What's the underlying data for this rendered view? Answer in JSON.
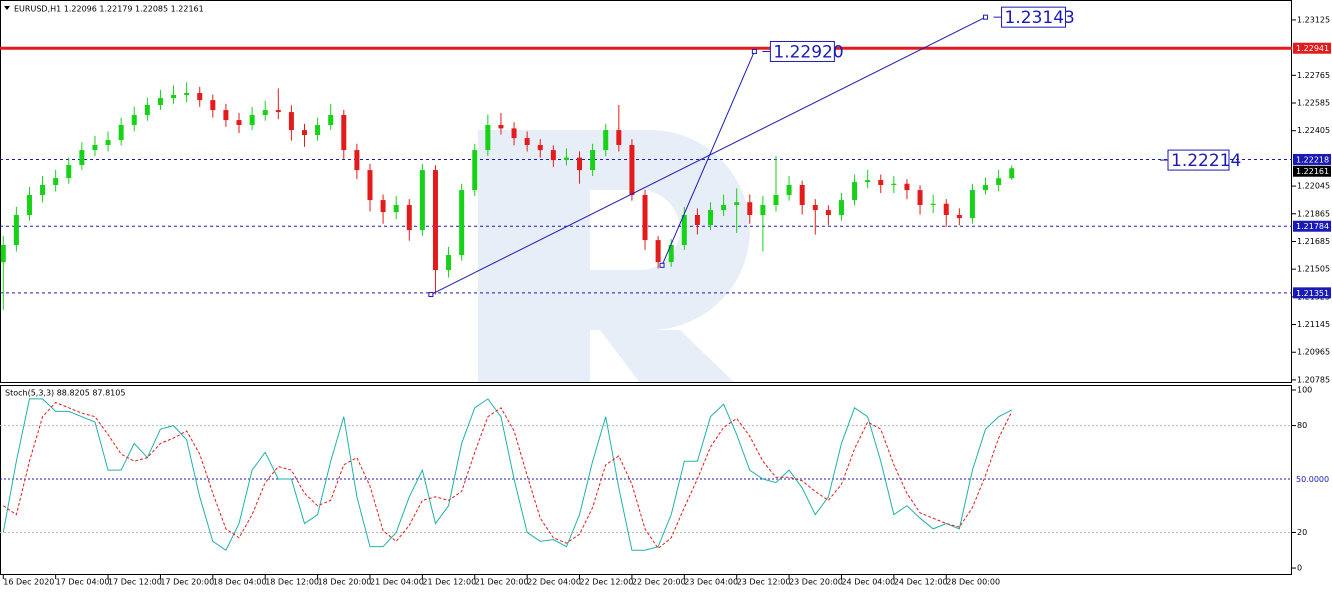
{
  "chart_data": [
    {
      "type": "candlestick",
      "title": "EURUSD,H1 1.22096 1.22179 1.22085 1.22161",
      "x": [
        0,
        2,
        4,
        6,
        8,
        10,
        12,
        14,
        16,
        18,
        20,
        22,
        24,
        26,
        28,
        30,
        32,
        34,
        36,
        38,
        40,
        42,
        44,
        46,
        48,
        50,
        52,
        54,
        56,
        58,
        60,
        62,
        64,
        66,
        68,
        70,
        72,
        74,
        76,
        78,
        80,
        82,
        84,
        86,
        88,
        90,
        92,
        94,
        96,
        98,
        100,
        102,
        104,
        106,
        108,
        110,
        112,
        114,
        116,
        118,
        120,
        122,
        124,
        126,
        128,
        130,
        132,
        134,
        136,
        138,
        140,
        142,
        144,
        146,
        148,
        150,
        152,
        154
      ],
      "open": [
        1.2155,
        1.21662,
        1.21857,
        1.21987,
        1.22052,
        1.22097,
        1.22182,
        1.22279,
        1.22312,
        1.22344,
        1.22442,
        1.22507,
        1.22572,
        1.22617,
        1.22637,
        1.2265,
        1.22604,
        1.22539,
        1.22474,
        1.22442,
        1.22507,
        1.22539,
        1.22526,
        1.22409,
        1.22377,
        1.22442,
        1.22507,
        1.22279,
        1.22149,
        1.21954,
        1.21876,
        1.21922,
        1.21759,
        1.22149,
        1.21499,
        1.21597,
        1.22019,
        1.22279,
        1.22442,
        1.2242,
        1.22357,
        1.22312,
        1.22279,
        1.22214,
        1.2223,
        1.22149,
        1.22279,
        1.22409,
        1.22312,
        1.21987,
        1.21694,
        1.21551,
        1.21662,
        1.21857,
        1.21792,
        1.21889,
        1.21922,
        1.2194,
        1.21857,
        1.21922,
        1.21987,
        1.22052,
        1.21922,
        1.21889,
        1.21857,
        1.21954,
        1.22071,
        1.22084,
        1.22052,
        1.2206,
        1.22019,
        1.21922,
        1.2193,
        1.21857,
        1.21837,
        1.22019,
        1.22052,
        1.22096
      ],
      "high": [
        1.2172,
        1.2191,
        1.2204,
        1.2211,
        1.2215,
        1.2223,
        1.2233,
        1.2237,
        1.224,
        1.2249,
        1.2256,
        1.2262,
        1.2267,
        1.227,
        1.2272,
        1.2269,
        1.2264,
        1.2258,
        1.2252,
        1.2256,
        1.226,
        1.2268,
        1.2257,
        1.2245,
        1.2249,
        1.2258,
        1.2254,
        1.2232,
        1.2219,
        1.2199,
        1.2198,
        1.2196,
        1.2219,
        1.2218,
        1.2165,
        1.2206,
        1.2232,
        1.2251,
        1.2252,
        1.2246,
        1.224,
        1.2235,
        1.2231,
        1.2229,
        1.2227,
        1.2232,
        1.2245,
        1.22572,
        1.2235,
        1.2202,
        1.2172,
        1.217,
        1.2191,
        1.219,
        1.2194,
        1.2199,
        1.2203,
        1.2199,
        1.2198,
        1.2224,
        1.2211,
        1.2208,
        1.2196,
        1.2192,
        1.22,
        1.2212,
        1.2215,
        1.2212,
        1.2211,
        1.2209,
        1.2205,
        1.2199,
        1.2196,
        1.219,
        1.2206,
        1.221,
        1.2215,
        1.22179
      ],
      "low": [
        1.2124,
        1.2162,
        1.2182,
        1.2194,
        1.2201,
        1.2206,
        1.2215,
        1.2224,
        1.2227,
        1.2231,
        1.224,
        1.2247,
        1.2254,
        1.2258,
        1.2259,
        1.2256,
        1.2249,
        1.2243,
        1.2239,
        1.2241,
        1.2247,
        1.2248,
        1.2234,
        1.223,
        1.2234,
        1.2241,
        1.2222,
        1.2209,
        1.2188,
        1.218,
        1.2183,
        1.2169,
        1.2172,
        1.2134,
        1.2145,
        1.2156,
        1.2198,
        1.2224,
        1.2238,
        1.2231,
        1.2227,
        1.2223,
        1.2217,
        1.2218,
        1.2206,
        1.2211,
        1.2224,
        1.2227,
        1.2195,
        1.2163,
        1.2151,
        1.2152,
        1.2163,
        1.2173,
        1.2176,
        1.2185,
        1.2174,
        1.218,
        1.2162,
        1.2188,
        1.2195,
        1.2186,
        1.2173,
        1.2179,
        1.2182,
        1.2192,
        1.2203,
        1.22,
        1.22,
        1.2196,
        1.2186,
        1.2187,
        1.2178,
        1.2179,
        1.218,
        1.2199,
        1.2201,
        1.22085
      ],
      "close": [
        1.21662,
        1.21857,
        1.21987,
        1.22052,
        1.22097,
        1.22182,
        1.22279,
        1.22312,
        1.22344,
        1.22442,
        1.22507,
        1.22572,
        1.22617,
        1.22637,
        1.2265,
        1.22604,
        1.22539,
        1.22474,
        1.22442,
        1.22507,
        1.22539,
        1.22526,
        1.22409,
        1.22377,
        1.22442,
        1.22507,
        1.22279,
        1.22149,
        1.21954,
        1.21876,
        1.21922,
        1.21759,
        1.22149,
        1.21499,
        1.21597,
        1.22019,
        1.22279,
        1.22442,
        1.2242,
        1.22357,
        1.22312,
        1.22279,
        1.22214,
        1.2223,
        1.22149,
        1.22279,
        1.22409,
        1.22312,
        1.21987,
        1.21694,
        1.21551,
        1.21662,
        1.21857,
        1.21792,
        1.21889,
        1.21922,
        1.2194,
        1.21857,
        1.21922,
        1.21987,
        1.22052,
        1.21922,
        1.21889,
        1.21857,
        1.21954,
        1.22071,
        1.22084,
        1.22052,
        1.2206,
        1.22019,
        1.21922,
        1.2193,
        1.21857,
        1.21837,
        1.22019,
        1.22052,
        1.22096,
        1.22161
      ],
      "up_color": "#17d217",
      "down_color": "#e41b1b",
      "xlim": [
        -0.5,
        196.8
      ],
      "xticks": [
        {
          "value": 0,
          "label": "16 Dec 2020"
        },
        {
          "value": 8,
          "label": "17 Dec 04:00"
        },
        {
          "value": 16,
          "label": "17 Dec 12:00"
        },
        {
          "value": 24,
          "label": "17 Dec 20:00"
        },
        {
          "value": 32,
          "label": "18 Dec 04:00"
        },
        {
          "value": 40,
          "label": "18 Dec 12:00"
        },
        {
          "value": 48,
          "label": "18 Dec 20:00"
        },
        {
          "value": 56,
          "label": "21 Dec 04:00"
        },
        {
          "value": 64,
          "label": "21 Dec 12:00"
        },
        {
          "value": 72,
          "label": "21 Dec 20:00"
        },
        {
          "value": 80,
          "label": "22 Dec 04:00"
        },
        {
          "value": 88,
          "label": "22 Dec 12:00"
        },
        {
          "value": 96,
          "label": "22 Dec 20:00"
        },
        {
          "value": 104,
          "label": "23 Dec 04:00"
        },
        {
          "value": 112,
          "label": "23 Dec 12:00"
        },
        {
          "value": 120,
          "label": "23 Dec 20:00"
        },
        {
          "value": 128,
          "label": "24 Dec 04:00"
        },
        {
          "value": 136,
          "label": "24 Dec 12:00"
        },
        {
          "value": 144,
          "label": "28 Dec 00:00"
        }
      ],
      "ylim": [
        1.20765,
        1.23235
      ],
      "yticks": [
        1.23125,
        1.22765,
        1.22585,
        1.22405,
        1.22045,
        1.21865,
        1.21685,
        1.21505,
        1.21325,
        1.21145,
        1.20965,
        1.20785
      ],
      "levels": [
        {
          "value": 1.22941,
          "color": "#e41b1b",
          "style": "solid"
        },
        {
          "value": 1.22218,
          "color": "#1a1ab8",
          "style": "dashed"
        },
        {
          "value": 1.21784,
          "color": "#1a1ab8",
          "style": "dashed"
        },
        {
          "value": 1.21351,
          "color": "#1a1ab8",
          "style": "dashed"
        }
      ],
      "current_price": 1.22161,
      "level_label": 1.22214,
      "trendlines": [
        {
          "x": [
            65.3,
            150.0
          ],
          "y": [
            1.2134,
            1.23143
          ],
          "color": "#1a1ab8",
          "end_label": 1.23143
        },
        {
          "x": [
            100.6,
            114.7
          ],
          "y": [
            1.2153,
            1.2292
          ],
          "color": "#1a1ab8",
          "end_label": {
            "value": 1.2292,
            "label": "1.22920"
          }
        }
      ]
    },
    {
      "type": "line",
      "title": "Stoch(5,3,3) 88.8205 87.8105",
      "x": [
        0,
        2,
        4,
        6,
        8,
        10,
        12,
        14,
        16,
        18,
        20,
        22,
        24,
        26,
        28,
        30,
        32,
        34,
        36,
        38,
        40,
        42,
        44,
        46,
        48,
        50,
        52,
        54,
        56,
        58,
        60,
        62,
        64,
        66,
        68,
        70,
        72,
        74,
        76,
        78,
        80,
        82,
        84,
        86,
        88,
        90,
        92,
        94,
        96,
        98,
        100,
        102,
        104,
        106,
        108,
        110,
        112,
        114,
        116,
        118,
        120,
        122,
        124,
        126,
        128,
        130,
        132,
        134,
        136,
        138,
        140,
        142,
        144,
        146,
        148,
        150,
        152,
        154
      ],
      "xlim": [
        -0.5,
        196.8
      ],
      "ylim": [
        -3.9,
        102.8
      ],
      "yticks": [
        0,
        20,
        80,
        100
      ],
      "levels": [
        {
          "value": 20,
          "color": "#b8b8b8"
        },
        {
          "value": 50,
          "color": "#1a1ab8",
          "label": "50.0000"
        },
        {
          "value": 80,
          "color": "#b8b8b8"
        }
      ],
      "series": [
        {
          "name": "Main",
          "color": "#20b2aa",
          "style": "solid",
          "values": [
            20,
            60,
            95,
            95,
            88,
            88,
            85,
            82,
            55,
            55,
            70,
            62,
            78,
            80,
            72,
            40,
            15,
            10,
            25,
            55,
            65,
            50,
            50,
            25,
            30,
            60,
            85,
            40,
            12,
            12,
            20,
            40,
            55,
            25,
            35,
            70,
            90,
            95,
            85,
            50,
            20,
            15,
            16,
            12,
            30,
            60,
            85,
            45,
            10,
            10,
            12,
            30,
            60,
            60,
            85,
            92,
            75,
            55,
            50,
            48,
            55,
            45,
            30,
            40,
            70,
            90,
            85,
            60,
            30,
            35,
            28,
            22,
            25,
            22,
            55,
            78,
            85,
            88.8205
          ]
        },
        {
          "name": "Signal",
          "color": "#e41b1b",
          "style": "dashed",
          "values": [
            35,
            30,
            60,
            85,
            93,
            90,
            87,
            85,
            75,
            64,
            60,
            62,
            70,
            73,
            77,
            64,
            42,
            22,
            17,
            30,
            48,
            57,
            55,
            42,
            35,
            38,
            58,
            62,
            46,
            21,
            15,
            24,
            38,
            40,
            38,
            43,
            65,
            85,
            90,
            77,
            52,
            28,
            17,
            14,
            19,
            34,
            58,
            63,
            47,
            22,
            11,
            17,
            34,
            50,
            68,
            79,
            84,
            74,
            60,
            51,
            51,
            49,
            43,
            38,
            47,
            67,
            82,
            78,
            58,
            42,
            31,
            28,
            25,
            23,
            34,
            52,
            73,
            87.8105
          ]
        }
      ]
    }
  ]
}
